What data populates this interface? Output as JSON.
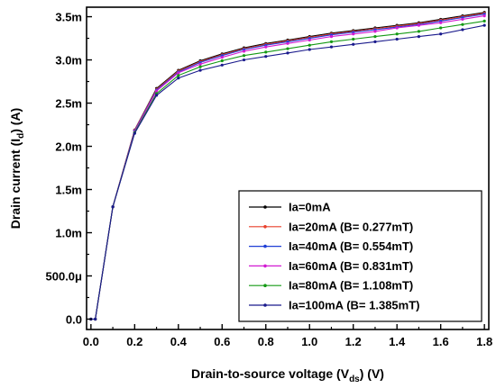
{
  "chart_data": {
    "type": "line",
    "xlabel": "Drain-to-source voltage (Vds) (V)",
    "xlabel_parts": {
      "main": "Drain-to-source voltage (V",
      "sub": "ds",
      "end": ") (V)"
    },
    "ylabel": "Drain current (Id) (A)",
    "ylabel_parts": {
      "main": "Drain current (I",
      "sub": "d",
      "end": ") (A)"
    },
    "xlim": [
      -0.02,
      1.82
    ],
    "ylim": [
      -0.00012,
      0.00361
    ],
    "x_ticks": [
      {
        "value": 0.0,
        "label": "0.0"
      },
      {
        "value": 0.2,
        "label": "0.2"
      },
      {
        "value": 0.4,
        "label": "0.4"
      },
      {
        "value": 0.6,
        "label": "0.6"
      },
      {
        "value": 0.8,
        "label": "0.8"
      },
      {
        "value": 1.0,
        "label": "1.0"
      },
      {
        "value": 1.2,
        "label": "1.2"
      },
      {
        "value": 1.4,
        "label": "1.4"
      },
      {
        "value": 1.6,
        "label": "1.6"
      },
      {
        "value": 1.8,
        "label": "1.8"
      }
    ],
    "y_ticks": [
      {
        "value": 0.0,
        "label": "0.0"
      },
      {
        "value": 0.0005,
        "label": "500.0μ"
      },
      {
        "value": 0.001,
        "label": "1.0m"
      },
      {
        "value": 0.0015,
        "label": "1.5m"
      },
      {
        "value": 0.002,
        "label": "2.0m"
      },
      {
        "value": 0.0025,
        "label": "2.5m"
      },
      {
        "value": 0.003,
        "label": "3.0m"
      },
      {
        "value": 0.0035,
        "label": "3.5m"
      }
    ],
    "grid": false,
    "legend_position": "bottom-right",
    "x": [
      0.0,
      0.02,
      0.1,
      0.2,
      0.3,
      0.4,
      0.5,
      0.6,
      0.7,
      0.8,
      0.9,
      1.0,
      1.1,
      1.2,
      1.3,
      1.4,
      1.5,
      1.6,
      1.7,
      1.8
    ],
    "series": [
      {
        "name": "Ia=0mA",
        "color": "#000000",
        "values": [
          0.0,
          0.0,
          0.0013,
          0.00219,
          0.00267,
          0.00288,
          0.00299,
          0.00307,
          0.00314,
          0.00319,
          0.00323,
          0.00327,
          0.00331,
          0.00334,
          0.00337,
          0.0034,
          0.00343,
          0.00347,
          0.00351,
          0.00355
        ]
      },
      {
        "name": "Ia=20mA (B= 0.277mT)",
        "color": "#e8402c",
        "values": [
          0.0,
          0.0,
          0.0013,
          0.00219,
          0.00266,
          0.00287,
          0.00298,
          0.00306,
          0.00313,
          0.00318,
          0.00322,
          0.00326,
          0.0033,
          0.00333,
          0.00336,
          0.00339,
          0.00342,
          0.00346,
          0.0035,
          0.00354
        ]
      },
      {
        "name": "Ia=40mA (B= 0.554mT)",
        "color": "#1f3fd6",
        "values": [
          0.0,
          0.0,
          0.0013,
          0.00218,
          0.00265,
          0.00286,
          0.00297,
          0.00305,
          0.00312,
          0.00317,
          0.00321,
          0.00325,
          0.00329,
          0.00332,
          0.00335,
          0.00338,
          0.00341,
          0.00345,
          0.00349,
          0.00353
        ]
      },
      {
        "name": "Ia=60mA (B= 0.831mT)",
        "color": "#d21bd2",
        "values": [
          0.0,
          0.0,
          0.0013,
          0.00217,
          0.00264,
          0.00285,
          0.00295,
          0.00303,
          0.0031,
          0.00315,
          0.00319,
          0.00323,
          0.00327,
          0.0033,
          0.00333,
          0.00337,
          0.0034,
          0.00343,
          0.00347,
          0.00351
        ]
      },
      {
        "name": "Ia=80mA (B= 1.108mT)",
        "color": "#159a15",
        "values": [
          0.0,
          0.0,
          0.0013,
          0.00216,
          0.00261,
          0.00282,
          0.00292,
          0.00299,
          0.00305,
          0.00309,
          0.00313,
          0.00317,
          0.00321,
          0.00324,
          0.00327,
          0.0033,
          0.00333,
          0.00337,
          0.00341,
          0.00345
        ]
      },
      {
        "name": "Ia=100mA (B= 1.385mT)",
        "color": "#1a1a8c",
        "values": [
          0.0,
          0.0,
          0.0013,
          0.00215,
          0.00259,
          0.00279,
          0.00288,
          0.00294,
          0.003,
          0.00304,
          0.00308,
          0.00312,
          0.00315,
          0.00318,
          0.00321,
          0.00324,
          0.00327,
          0.0033,
          0.00335,
          0.0034
        ]
      }
    ]
  }
}
